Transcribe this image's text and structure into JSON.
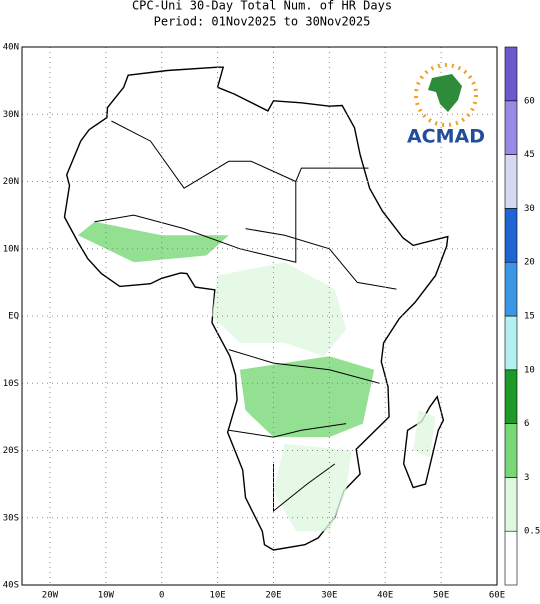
{
  "title": [
    "CPC-Uni 30-Day Total Num. of HR Days",
    "Period: 01Nov2025 to 30Nov2025"
  ],
  "logo": "ACMAD",
  "lat_ticks": [
    {
      "value": 40,
      "label": "40N"
    },
    {
      "value": 30,
      "label": "30N"
    },
    {
      "value": 20,
      "label": "20N"
    },
    {
      "value": 10,
      "label": "10N"
    },
    {
      "value": 0,
      "label": "EQ"
    },
    {
      "value": -10,
      "label": "10S"
    },
    {
      "value": -20,
      "label": "20S"
    },
    {
      "value": -30,
      "label": "30S"
    },
    {
      "value": -40,
      "label": "40S"
    }
  ],
  "lon_ticks": [
    {
      "value": -20,
      "label": "20W"
    },
    {
      "value": -10,
      "label": "10W"
    },
    0,
    {
      "value": 10,
      "label": "10E"
    },
    {
      "value": 20,
      "label": "20E"
    },
    {
      "value": 30,
      "label": "30E"
    },
    {
      "value": 40,
      "label": "40E"
    },
    {
      "value": 50,
      "label": "50E"
    },
    {
      "value": 60,
      "label": "60E"
    }
  ],
  "colorbar": {
    "levels": [
      0.5,
      3,
      6,
      10,
      15,
      20,
      30,
      45,
      60
    ],
    "colors": [
      "#ffffff",
      "#e0f8e0",
      "#78d878",
      "#1e9a28",
      "#b4f0f0",
      "#3c96e6",
      "#1e64d2",
      "#d8d8f2",
      "#9a8ae6",
      "#6a5acd"
    ]
  }
}
